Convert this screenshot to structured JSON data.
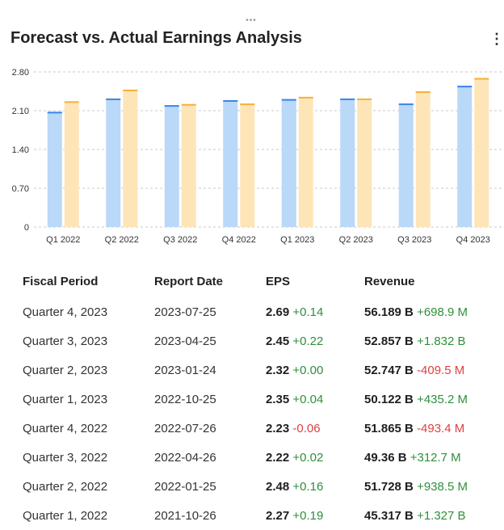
{
  "header": {
    "title": "Forecast vs. Actual Earnings Analysis",
    "menu_icon": "vertical-ellipsis-icon",
    "drag_icon": "horizontal-ellipsis-icon",
    "drag_glyph": "•••",
    "menu_glyph": "⋮"
  },
  "colors": {
    "forecast": "#bad8f8",
    "forecast_top": "#3a86e8",
    "actual": "#fde5b8",
    "actual_top": "#f5b13a",
    "positive": "#2f8f3a",
    "negative": "#e04040"
  },
  "chart_data": {
    "type": "bar",
    "categories": [
      "Q1 2022",
      "Q2 2022",
      "Q3 2022",
      "Q4 2022",
      "Q1 2023",
      "Q2 2023",
      "Q3 2023",
      "Q4 2023"
    ],
    "series": [
      {
        "values": [
          2.08,
          2.32,
          2.2,
          2.29,
          2.31,
          2.32,
          2.23,
          2.55
        ]
      },
      {
        "values": [
          2.27,
          2.48,
          2.22,
          2.23,
          2.35,
          2.32,
          2.45,
          2.69
        ]
      }
    ],
    "yticks": [
      "2.80",
      "2.10",
      "1.40",
      "0.70",
      "0"
    ],
    "ylim": [
      0,
      2.8
    ],
    "grid": true
  },
  "table": {
    "headers": [
      "Fiscal Period",
      "Report Date",
      "EPS",
      "Revenue"
    ],
    "rows": [
      {
        "period": "Quarter 4, 2023",
        "date": "2023-07-25",
        "eps": "2.69",
        "eps_delta": "+0.14",
        "revenue": "56.189 B",
        "revenue_delta": "+698.9 M"
      },
      {
        "period": "Quarter 3, 2023",
        "date": "2023-04-25",
        "eps": "2.45",
        "eps_delta": "+0.22",
        "revenue": "52.857 B",
        "revenue_delta": "+1.832 B"
      },
      {
        "period": "Quarter 2, 2023",
        "date": "2023-01-24",
        "eps": "2.32",
        "eps_delta": "+0.00",
        "revenue": "52.747 B",
        "revenue_delta": "-409.5 M"
      },
      {
        "period": "Quarter 1, 2023",
        "date": "2022-10-25",
        "eps": "2.35",
        "eps_delta": "+0.04",
        "revenue": "50.122 B",
        "revenue_delta": "+435.2 M"
      },
      {
        "period": "Quarter 4, 2022",
        "date": "2022-07-26",
        "eps": "2.23",
        "eps_delta": "-0.06",
        "revenue": "51.865 B",
        "revenue_delta": "-493.4 M"
      },
      {
        "period": "Quarter 3, 2022",
        "date": "2022-04-26",
        "eps": "2.22",
        "eps_delta": "+0.02",
        "revenue": "49.36 B",
        "revenue_delta": "+312.7 M"
      },
      {
        "period": "Quarter 2, 2022",
        "date": "2022-01-25",
        "eps": "2.48",
        "eps_delta": "+0.16",
        "revenue": "51.728 B",
        "revenue_delta": "+938.5 M"
      },
      {
        "period": "Quarter 1, 2022",
        "date": "2021-10-26",
        "eps": "2.27",
        "eps_delta": "+0.19",
        "revenue": "45.317 B",
        "revenue_delta": "+1.327 B"
      }
    ]
  }
}
